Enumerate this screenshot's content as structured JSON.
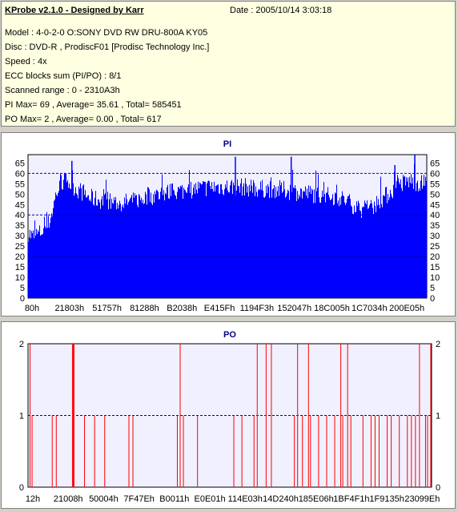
{
  "info": {
    "title": "KProbe v2.1.0 - Designed by Karr",
    "date": "Date : 2005/10/14 3:03:18",
    "model": "Model : 4-0-2-0 O:SONY    DVD RW DRU-800A  KY05",
    "disc": "Disc : DVD-R , ProdiscF01 [Prodisc Technology Inc.]",
    "speed": "Speed : 4x",
    "ecc": "ECC blocks sum (PI/PO) : 8/1",
    "range": "Scanned range : 0 - 2310A3h",
    "pi": "PI Max= 69 , Average= 35.61 , Total= 585451",
    "po": "PO Max= 2 , Average= 0.00 , Total= 617"
  },
  "colors": {
    "bar_pi": "#0000ff",
    "bar_po": "#ff0000",
    "plot_bg": "#f0f0ff",
    "grid": "#0000a0"
  },
  "chart_data": [
    {
      "type": "area",
      "title": "PI",
      "ylim": [
        0,
        69
      ],
      "yticks": [
        0,
        5,
        10,
        15,
        20,
        25,
        30,
        35,
        40,
        45,
        50,
        55,
        60,
        65
      ],
      "grid_y": [
        20,
        40,
        60
      ],
      "xlabels": [
        "80h",
        "21803h",
        "51757h",
        "81288h",
        "B2038h",
        "E415Fh",
        "1194F3h",
        "152047h",
        "18C005h",
        "1C7034h",
        "200E05h"
      ],
      "x": [
        0,
        0.01,
        0.02,
        0.03,
        0.04,
        0.05,
        0.06,
        0.07,
        0.08,
        0.09,
        0.1,
        0.11,
        0.12,
        0.13,
        0.14,
        0.15,
        0.17,
        0.2,
        0.23,
        0.26,
        0.3,
        0.34,
        0.38,
        0.42,
        0.46,
        0.5,
        0.54,
        0.58,
        0.62,
        0.66,
        0.7,
        0.74,
        0.78,
        0.81,
        0.84,
        0.86,
        0.88,
        0.9,
        0.93,
        0.96,
        0.98,
        1.0
      ],
      "y": [
        33,
        31,
        32,
        33,
        35,
        37,
        43,
        52,
        55,
        58,
        57,
        56,
        54,
        53,
        52,
        50,
        49,
        48,
        47,
        48,
        50,
        52,
        53,
        54,
        55,
        55,
        55,
        54,
        54,
        53,
        52,
        51,
        50,
        47,
        44,
        45,
        48,
        51,
        56,
        58,
        57,
        56
      ],
      "max_markers": [
        [
          0.11,
          66
        ],
        [
          0.52,
          68
        ],
        [
          0.97,
          69
        ],
        [
          0.92,
          64
        ],
        [
          0.66,
          68
        ]
      ]
    },
    {
      "type": "bar",
      "title": "PO",
      "ylim": [
        0,
        2
      ],
      "yticks": [
        0,
        1,
        2
      ],
      "xlabels": [
        "12h",
        "21008h",
        "50004h",
        "7F47Eh",
        "B0011h",
        "E0E01h",
        "114E03h",
        "14D240h",
        "185E06h",
        "1BF4F1h",
        "1F9135h",
        "23099Eh"
      ],
      "spikes_2": [
        0.005,
        0.11,
        0.112,
        0.114,
        0.377,
        0.568,
        0.59,
        0.603,
        0.668,
        0.695,
        0.775,
        0.792,
        0.97,
        0.998
      ],
      "spikes_1": [
        0.01,
        0.06,
        0.07,
        0.14,
        0.165,
        0.19,
        0.25,
        0.26,
        0.37,
        0.385,
        0.42,
        0.51,
        0.53,
        0.56,
        0.66,
        0.68,
        0.7,
        0.72,
        0.74,
        0.76,
        0.78,
        0.8,
        0.83,
        0.85,
        0.86,
        0.87,
        0.89,
        0.9,
        0.92,
        0.94,
        0.95,
        0.96,
        0.985,
        0.99
      ]
    }
  ]
}
